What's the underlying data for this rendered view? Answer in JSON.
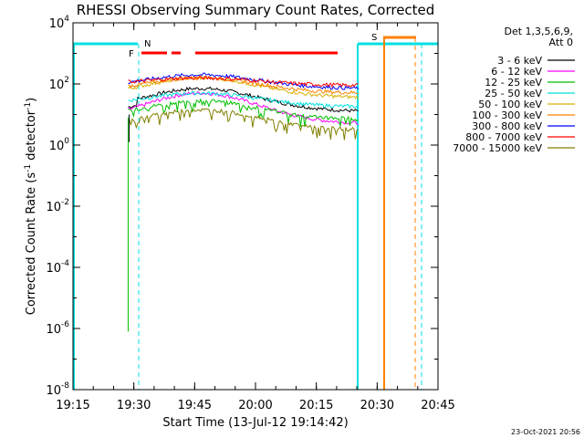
{
  "chart_data": {
    "type": "line",
    "title": "RHESSI Observing Summary Count Rates, Corrected",
    "xlabel": "Start Time (13-Jul-12 19:14:42)",
    "ylabel": "Corrected Count Rate (s⁻¹ detector⁻¹)",
    "ylabel_main": "Corrected Count Rate (s",
    "ylabel_mid": " detector",
    "ylabel_end": ")",
    "ylabel_sup": "-1",
    "timestamp": "23-Oct-2021 20:56",
    "x_start_min": 0,
    "x_end_min": 100,
    "xlim_minutes_after_19_00": [
      15,
      100
    ],
    "x_ticks": [
      {
        "label": "19:15",
        "minute": 15
      },
      {
        "label": "19:30",
        "minute": 30
      },
      {
        "label": "19:45",
        "minute": 45
      },
      {
        "label": "20:00",
        "minute": 60
      },
      {
        "label": "20:15",
        "minute": 75
      },
      {
        "label": "20:30",
        "minute": 90
      },
      {
        "label": "20:45",
        "minute": 105
      }
    ],
    "y_scale": "log",
    "ylim_exponent": [
      -8,
      4
    ],
    "y_ticks": [
      {
        "base": "10",
        "exp": "4",
        "e": 4
      },
      {
        "base": "10",
        "exp": "2",
        "e": 2
      },
      {
        "base": "10",
        "exp": "0",
        "e": 0
      },
      {
        "base": "10",
        "exp": "-2",
        "e": -2
      },
      {
        "base": "10",
        "exp": "-4",
        "e": -4
      },
      {
        "base": "10",
        "exp": "-6",
        "e": -6
      },
      {
        "base": "10",
        "exp": "-8",
        "e": -8
      }
    ],
    "legend_header": [
      "Det 1,3,5,6,9,",
      "Att 0"
    ],
    "series": [
      {
        "name": "3 - 6 keV",
        "color": "#000000",
        "base_exp": 1.1,
        "peak_exp": 0.75
      },
      {
        "name": "6 - 12 keV",
        "color": "#ff00ff",
        "base_exp": 0.7,
        "peak_exp": 1.0
      },
      {
        "name": "12 - 25 keV",
        "color": "#00c000",
        "base_exp": 0.85,
        "peak_exp": 0.6
      },
      {
        "name": "25 - 50 keV",
        "color": "#00e0e0",
        "base_exp": 1.25,
        "peak_exp": 0.45
      },
      {
        "name": "50 - 100 keV",
        "color": "#d8b000",
        "base_exp": 1.55,
        "peak_exp": 0.65
      },
      {
        "name": "100 - 300 keV",
        "color": "#ff8000",
        "base_exp": 1.7,
        "peak_exp": 0.5
      },
      {
        "name": "300 - 800 keV",
        "color": "#0000ff",
        "base_exp": 1.85,
        "peak_exp": 0.45
      },
      {
        "name": "800 - 7000 keV",
        "color": "#ff0000",
        "base_exp": 1.95,
        "peak_exp": 0.25
      },
      {
        "name": "7000 - 15000 keV",
        "color": "#808000",
        "base_exp": 0.5,
        "peak_exp": 0.65
      }
    ],
    "annotations": [
      {
        "label": "N",
        "color": "#00e0e0"
      },
      {
        "label": "F",
        "color": "#ff0000"
      },
      {
        "label": "S",
        "color": "#ff8000"
      }
    ]
  }
}
